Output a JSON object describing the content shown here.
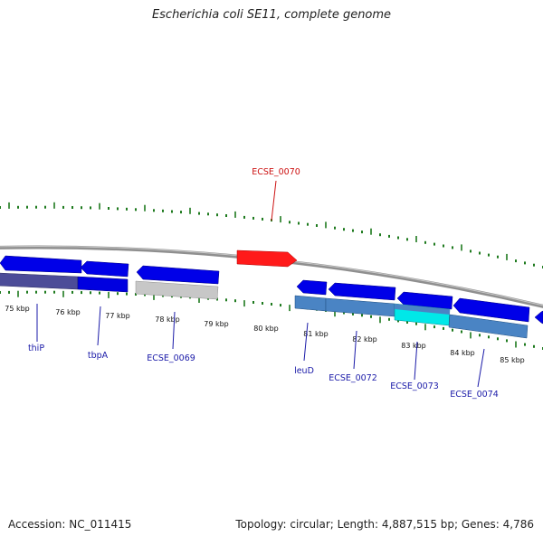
{
  "title": "Escherichia coli SE11, complete genome",
  "footer": {
    "accession": "Accession: NC_011415",
    "summary": "Topology: circular; Length: 4,887,515 bp; Genes: 4,786"
  },
  "colors": {
    "backbone": "#8a8a8a",
    "tick": "#1e7a1e",
    "gene_forward": "#0000e6",
    "gene_highlight": "#ff0000",
    "label_blue": "#1a1aa8",
    "label_red": "#cc1111"
  },
  "scale_labels": [
    "75 kbp",
    "76 kbp",
    "77 kbp",
    "78 kbp",
    "79 kbp",
    "80 kbp",
    "81 kbp",
    "82 kbp",
    "83 kbp",
    "84 kbp",
    "85 kbp"
  ],
  "gene_labels": [
    {
      "id": "thiP",
      "text": "thiP",
      "color": "blue"
    },
    {
      "id": "tbpA",
      "text": "tbpA",
      "color": "blue"
    },
    {
      "id": "ECSE_0069",
      "text": "ECSE_0069",
      "color": "blue"
    },
    {
      "id": "ECSE_0070",
      "text": "ECSE_0070",
      "color": "red"
    },
    {
      "id": "leuD",
      "text": "leuD",
      "color": "blue"
    },
    {
      "id": "ECSE_0072",
      "text": "ECSE_0072",
      "color": "blue"
    },
    {
      "id": "ECSE_0073",
      "text": "ECSE_0073",
      "color": "blue"
    },
    {
      "id": "ECSE_0074",
      "text": "ECSE_0074",
      "color": "blue"
    }
  ]
}
